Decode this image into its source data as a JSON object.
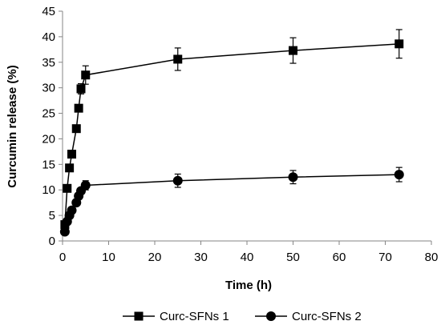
{
  "chart_data": {
    "type": "line",
    "title": "",
    "xlabel": "Time (h)",
    "ylabel": "Curcumin release (%)",
    "xlim": [
      0,
      80
    ],
    "ylim": [
      0,
      45
    ],
    "x_ticks": [
      0,
      10,
      20,
      30,
      40,
      50,
      60,
      70,
      80
    ],
    "y_ticks": [
      0,
      5,
      10,
      15,
      20,
      25,
      30,
      35,
      40,
      45
    ],
    "grid": false,
    "legend_position": "bottom",
    "series": [
      {
        "name": "Curc-SFNs 1",
        "marker": "square",
        "color": "#000000",
        "points": [
          {
            "x": 0.5,
            "y": 3.2
          },
          {
            "x": 1,
            "y": 10.3
          },
          {
            "x": 1.5,
            "y": 14.3
          },
          {
            "x": 2,
            "y": 17.0
          },
          {
            "x": 3,
            "y": 22.0
          },
          {
            "x": 3.5,
            "y": 26.0
          },
          {
            "x": 4,
            "y": 29.8
          },
          {
            "x": 5,
            "y": 32.5
          },
          {
            "x": 25,
            "y": 35.6
          },
          {
            "x": 50,
            "y": 37.3
          },
          {
            "x": 73,
            "y": 38.6
          }
        ],
        "errors": [
          0,
          0,
          0,
          0,
          0,
          0,
          1.0,
          1.8,
          2.2,
          2.5,
          2.8
        ]
      },
      {
        "name": "Curc-SFNs 2",
        "marker": "circle",
        "color": "#000000",
        "points": [
          {
            "x": 0.5,
            "y": 1.8
          },
          {
            "x": 1,
            "y": 3.8
          },
          {
            "x": 1.5,
            "y": 5.0
          },
          {
            "x": 2,
            "y": 6.0
          },
          {
            "x": 3,
            "y": 7.5
          },
          {
            "x": 3.5,
            "y": 8.8
          },
          {
            "x": 4,
            "y": 9.8
          },
          {
            "x": 5,
            "y": 10.9
          },
          {
            "x": 25,
            "y": 11.8
          },
          {
            "x": 50,
            "y": 12.5
          },
          {
            "x": 73,
            "y": 13.0
          }
        ],
        "errors": [
          0,
          0,
          0,
          0,
          0,
          0,
          0,
          0.9,
          1.3,
          1.3,
          1.4
        ]
      }
    ]
  }
}
